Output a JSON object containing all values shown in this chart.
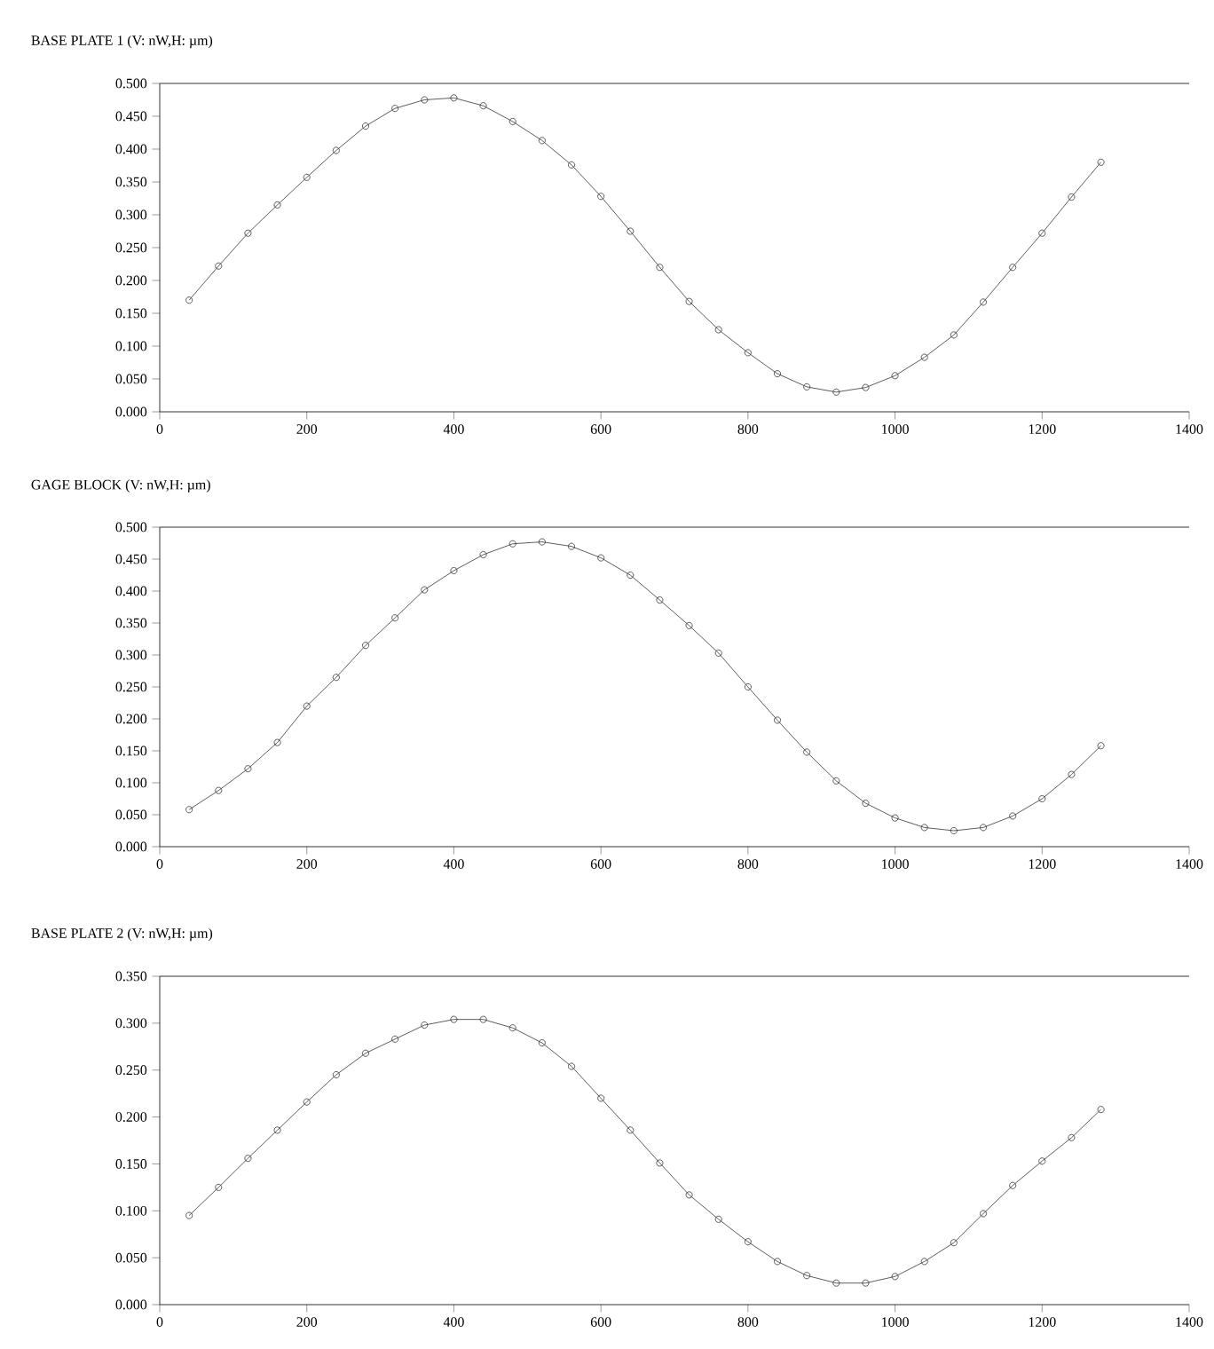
{
  "chart_data": [
    {
      "type": "line",
      "title": "BASE PLATE 1 (V: nW,H: µm)",
      "marker": "circle",
      "line_style": "solid",
      "grid": false,
      "x": [
        40,
        80,
        120,
        160,
        200,
        240,
        280,
        320,
        360,
        400,
        440,
        480,
        520,
        560,
        600,
        640,
        680,
        720,
        760,
        800,
        840,
        880,
        920,
        960,
        1000,
        1040,
        1080,
        1120,
        1160,
        1200,
        1240,
        1280
      ],
      "series": [
        {
          "color": "#333333",
          "values": [
            0.17,
            0.222,
            0.272,
            0.315,
            0.357,
            0.398,
            0.435,
            0.462,
            0.475,
            0.478,
            0.466,
            0.442,
            0.413,
            0.376,
            0.328,
            0.275,
            0.22,
            0.168,
            0.125,
            0.09,
            0.058,
            0.038,
            0.03,
            0.037,
            0.055,
            0.083,
            0.117,
            0.167,
            0.22,
            0.272,
            0.327,
            0.38
          ]
        }
      ],
      "xlim": [
        0,
        1400
      ],
      "xticks": [
        0,
        200,
        400,
        600,
        800,
        1000,
        1200,
        1400
      ],
      "ylim": [
        0,
        0.5
      ],
      "yticks": [
        {
          "value": 0,
          "label": "0.000"
        },
        {
          "value": 0.05,
          "label": "0.050"
        },
        {
          "value": 0.1,
          "label": "0.100"
        },
        {
          "value": 0.15,
          "label": "0.150"
        },
        {
          "value": 0.2,
          "label": "0.200"
        },
        {
          "value": 0.25,
          "label": "0.250"
        },
        {
          "value": 0.3,
          "label": "0.300"
        },
        {
          "value": 0.35,
          "label": "0.350"
        },
        {
          "value": 0.4,
          "label": "0.400"
        },
        {
          "value": 0.45,
          "label": "0.450"
        },
        {
          "value": 0.5,
          "label": "0.500"
        }
      ]
    },
    {
      "type": "line",
      "title": "GAGE BLOCK (V: nW,H: µm)",
      "marker": "circle",
      "line_style": "solid",
      "grid": false,
      "x": [
        40,
        80,
        120,
        160,
        200,
        240,
        280,
        320,
        360,
        400,
        440,
        480,
        520,
        560,
        600,
        640,
        680,
        720,
        760,
        800,
        840,
        880,
        920,
        960,
        1000,
        1040,
        1080,
        1120,
        1160,
        1200,
        1240,
        1280
      ],
      "series": [
        {
          "color": "#333333",
          "values": [
            0.058,
            0.088,
            0.122,
            0.163,
            0.22,
            0.265,
            0.315,
            0.358,
            0.402,
            0.432,
            0.457,
            0.474,
            0.477,
            0.47,
            0.452,
            0.425,
            0.386,
            0.346,
            0.303,
            0.25,
            0.198,
            0.148,
            0.103,
            0.068,
            0.045,
            0.03,
            0.025,
            0.03,
            0.048,
            0.075,
            0.113,
            0.158
          ]
        }
      ],
      "xlim": [
        0,
        1400
      ],
      "xticks": [
        0,
        200,
        400,
        600,
        800,
        1000,
        1200,
        1400
      ],
      "ylim": [
        0,
        0.5
      ],
      "yticks": [
        {
          "value": 0,
          "label": "0.000"
        },
        {
          "value": 0.05,
          "label": "0.050"
        },
        {
          "value": 0.1,
          "label": "0.100"
        },
        {
          "value": 0.15,
          "label": "0.150"
        },
        {
          "value": 0.2,
          "label": "0.200"
        },
        {
          "value": 0.25,
          "label": "0.250"
        },
        {
          "value": 0.3,
          "label": "0.300"
        },
        {
          "value": 0.35,
          "label": "0.350"
        },
        {
          "value": 0.4,
          "label": "0.400"
        },
        {
          "value": 0.45,
          "label": "0.450"
        },
        {
          "value": 0.5,
          "label": "0.500"
        }
      ]
    },
    {
      "type": "line",
      "title": "BASE PLATE 2 (V: nW,H: µm)",
      "marker": "circle",
      "line_style": "solid",
      "grid": false,
      "x": [
        40,
        80,
        120,
        160,
        200,
        240,
        280,
        320,
        360,
        400,
        440,
        480,
        520,
        560,
        600,
        640,
        680,
        720,
        760,
        800,
        840,
        880,
        920,
        960,
        1000,
        1040,
        1080,
        1120,
        1160,
        1200,
        1240,
        1280
      ],
      "series": [
        {
          "color": "#333333",
          "values": [
            0.095,
            0.125,
            0.156,
            0.186,
            0.216,
            0.245,
            0.268,
            0.283,
            0.298,
            0.304,
            0.304,
            0.295,
            0.279,
            0.254,
            0.22,
            0.186,
            0.151,
            0.117,
            0.091,
            0.067,
            0.046,
            0.031,
            0.023,
            0.023,
            0.03,
            0.046,
            0.066,
            0.097,
            0.127,
            0.153,
            0.178,
            0.208
          ]
        }
      ],
      "xlim": [
        0,
        1400
      ],
      "xticks": [
        0,
        200,
        400,
        600,
        800,
        1000,
        1200,
        1400
      ],
      "ylim": [
        0,
        0.35
      ],
      "yticks": [
        {
          "value": 0,
          "label": "0.000"
        },
        {
          "value": 0.05,
          "label": "0.050"
        },
        {
          "value": 0.1,
          "label": "0.100"
        },
        {
          "value": 0.15,
          "label": "0.150"
        },
        {
          "value": 0.2,
          "label": "0.200"
        },
        {
          "value": 0.25,
          "label": "0.250"
        },
        {
          "value": 0.3,
          "label": "0.300"
        },
        {
          "value": 0.35,
          "label": "0.350"
        }
      ]
    }
  ]
}
